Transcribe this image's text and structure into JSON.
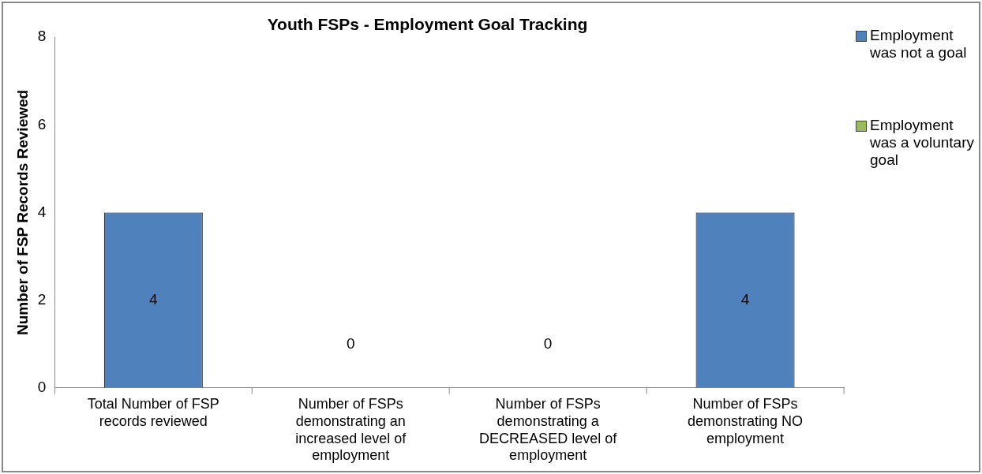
{
  "chart_data": {
    "type": "bar",
    "title": "Youth FSPs - Employment Goal Tracking",
    "ylabel": "Number of FSP Records Reviewed",
    "categories": [
      "Total Number of FSP records reviewed",
      "Number of FSPs demonstrating an increased level of employment",
      "Number of FSPs demonstrating a DECREASED level of employment",
      "Number of FSPs demonstrating NO employment"
    ],
    "series": [
      {
        "name": "Employment was not a goal",
        "color": "#4f81bd",
        "values": [
          4,
          0,
          0,
          4
        ],
        "value_labels": [
          "4",
          "0",
          "0",
          "4"
        ]
      },
      {
        "name": "Employment was a voluntary goal",
        "color": "#9bbb59",
        "values": [
          0,
          0,
          0,
          0
        ]
      }
    ],
    "stacked": true,
    "ylim": [
      0,
      8
    ],
    "yticks": [
      0,
      2,
      4,
      6,
      8
    ],
    "grid": false,
    "legend": "right"
  }
}
